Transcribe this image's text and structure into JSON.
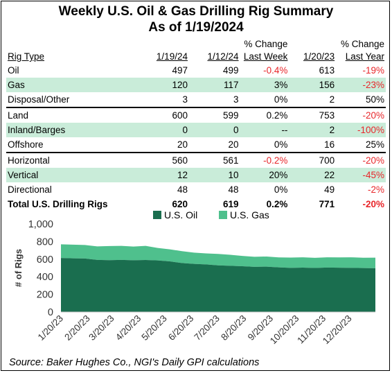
{
  "title_line1": "Weekly U.S. Oil & Gas Drilling Rig Summary",
  "title_line2": "As of 1/19/2024",
  "table": {
    "headers": {
      "rig_type": "Rig Type",
      "d1": "1/19/24",
      "d2": "1/12/24",
      "chg_week_top": "% Change",
      "chg_week_bottom": "Last Week",
      "d3": "1/20/23",
      "chg_year_top": "% Change",
      "chg_year_bottom": "Last Year"
    },
    "groups": [
      {
        "rows": [
          {
            "label": "Oil",
            "v1": "497",
            "v2": "499",
            "wk": "-0.4%",
            "ly": "613",
            "yr": "-19%",
            "wk_neg": true,
            "yr_neg": true,
            "hl": false
          },
          {
            "label": "Gas",
            "v1": "120",
            "v2": "117",
            "wk": "3%",
            "ly": "156",
            "yr": "-23%",
            "wk_neg": false,
            "yr_neg": true,
            "hl": true
          },
          {
            "label": "Disposal/Other",
            "v1": "3",
            "v2": "3",
            "wk": "0%",
            "ly": "2",
            "yr": "50%",
            "wk_neg": false,
            "yr_neg": false,
            "hl": false
          }
        ]
      },
      {
        "rows": [
          {
            "label": "Land",
            "v1": "600",
            "v2": "599",
            "wk": "0.2%",
            "ly": "753",
            "yr": "-20%",
            "wk_neg": false,
            "yr_neg": true,
            "hl": false
          },
          {
            "label": "Inland/Barges",
            "v1": "0",
            "v2": "0",
            "wk": "--",
            "ly": "2",
            "yr": "-100%",
            "wk_neg": false,
            "yr_neg": true,
            "hl": true
          },
          {
            "label": "Offshore",
            "v1": "20",
            "v2": "20",
            "wk": "0%",
            "ly": "16",
            "yr": "25%",
            "wk_neg": false,
            "yr_neg": false,
            "hl": false
          }
        ]
      },
      {
        "rows": [
          {
            "label": "Horizontal",
            "v1": "560",
            "v2": "561",
            "wk": "-0.2%",
            "ly": "700",
            "yr": "-20%",
            "wk_neg": true,
            "yr_neg": true,
            "hl": false
          },
          {
            "label": "Vertical",
            "v1": "12",
            "v2": "10",
            "wk": "20%",
            "ly": "22",
            "yr": "-45%",
            "wk_neg": false,
            "yr_neg": true,
            "hl": true
          },
          {
            "label": "Directional",
            "v1": "48",
            "v2": "48",
            "wk": "0%",
            "ly": "49",
            "yr": "-2%",
            "wk_neg": false,
            "yr_neg": true,
            "hl": false
          }
        ]
      }
    ],
    "total": {
      "label": "Total U.S. Drilling Rigs",
      "v1": "620",
      "v2": "619",
      "wk": "0.2%",
      "ly": "771",
      "yr": "-20%",
      "wk_neg": false,
      "yr_neg": true
    }
  },
  "source": "Source: Baker Hughes Co., NGI's Daily GPI calculations",
  "colors": {
    "oil": "#1a6e4f",
    "gas": "#4fc08d",
    "negative": "#e8262a",
    "highlight": "#c9ecd9"
  },
  "chart_data": {
    "type": "area",
    "stacked": true,
    "ylabel": "# of Rigs",
    "ylim": [
      0,
      1000
    ],
    "yticks": [
      "0",
      "200",
      "400",
      "600",
      "800",
      "1,000"
    ],
    "ytick_values": [
      0,
      200,
      400,
      600,
      800,
      1000
    ],
    "xticks": [
      "1/20/23",
      "2/20/23",
      "3/20/23",
      "4/20/23",
      "5/20/23",
      "6/20/23",
      "7/20/23",
      "8/20/23",
      "9/20/23",
      "10/20/23",
      "11/20/23",
      "12/20/23"
    ],
    "legend_position": "top-center",
    "x": [
      "2023-01-20",
      "2023-02-03",
      "2023-02-17",
      "2023-03-03",
      "2023-03-17",
      "2023-03-31",
      "2023-04-14",
      "2023-04-28",
      "2023-05-12",
      "2023-05-26",
      "2023-06-09",
      "2023-06-23",
      "2023-07-07",
      "2023-07-21",
      "2023-08-04",
      "2023-08-18",
      "2023-09-01",
      "2023-09-15",
      "2023-09-29",
      "2023-10-13",
      "2023-10-27",
      "2023-11-10",
      "2023-11-24",
      "2023-12-08",
      "2023-12-22",
      "2024-01-05",
      "2024-01-19"
    ],
    "series": [
      {
        "name": "U.S. Oil",
        "values": [
          613,
          609,
          607,
          592,
          589,
          592,
          588,
          591,
          586,
          575,
          556,
          546,
          540,
          530,
          525,
          520,
          513,
          515,
          507,
          501,
          504,
          500,
          505,
          503,
          501,
          499,
          497
        ]
      },
      {
        "name": "U.S. Gas",
        "values": [
          156,
          156,
          154,
          153,
          160,
          159,
          155,
          160,
          141,
          137,
          135,
          128,
          125,
          129,
          125,
          117,
          114,
          115,
          113,
          117,
          117,
          115,
          116,
          117,
          120,
          117,
          120
        ]
      }
    ]
  }
}
